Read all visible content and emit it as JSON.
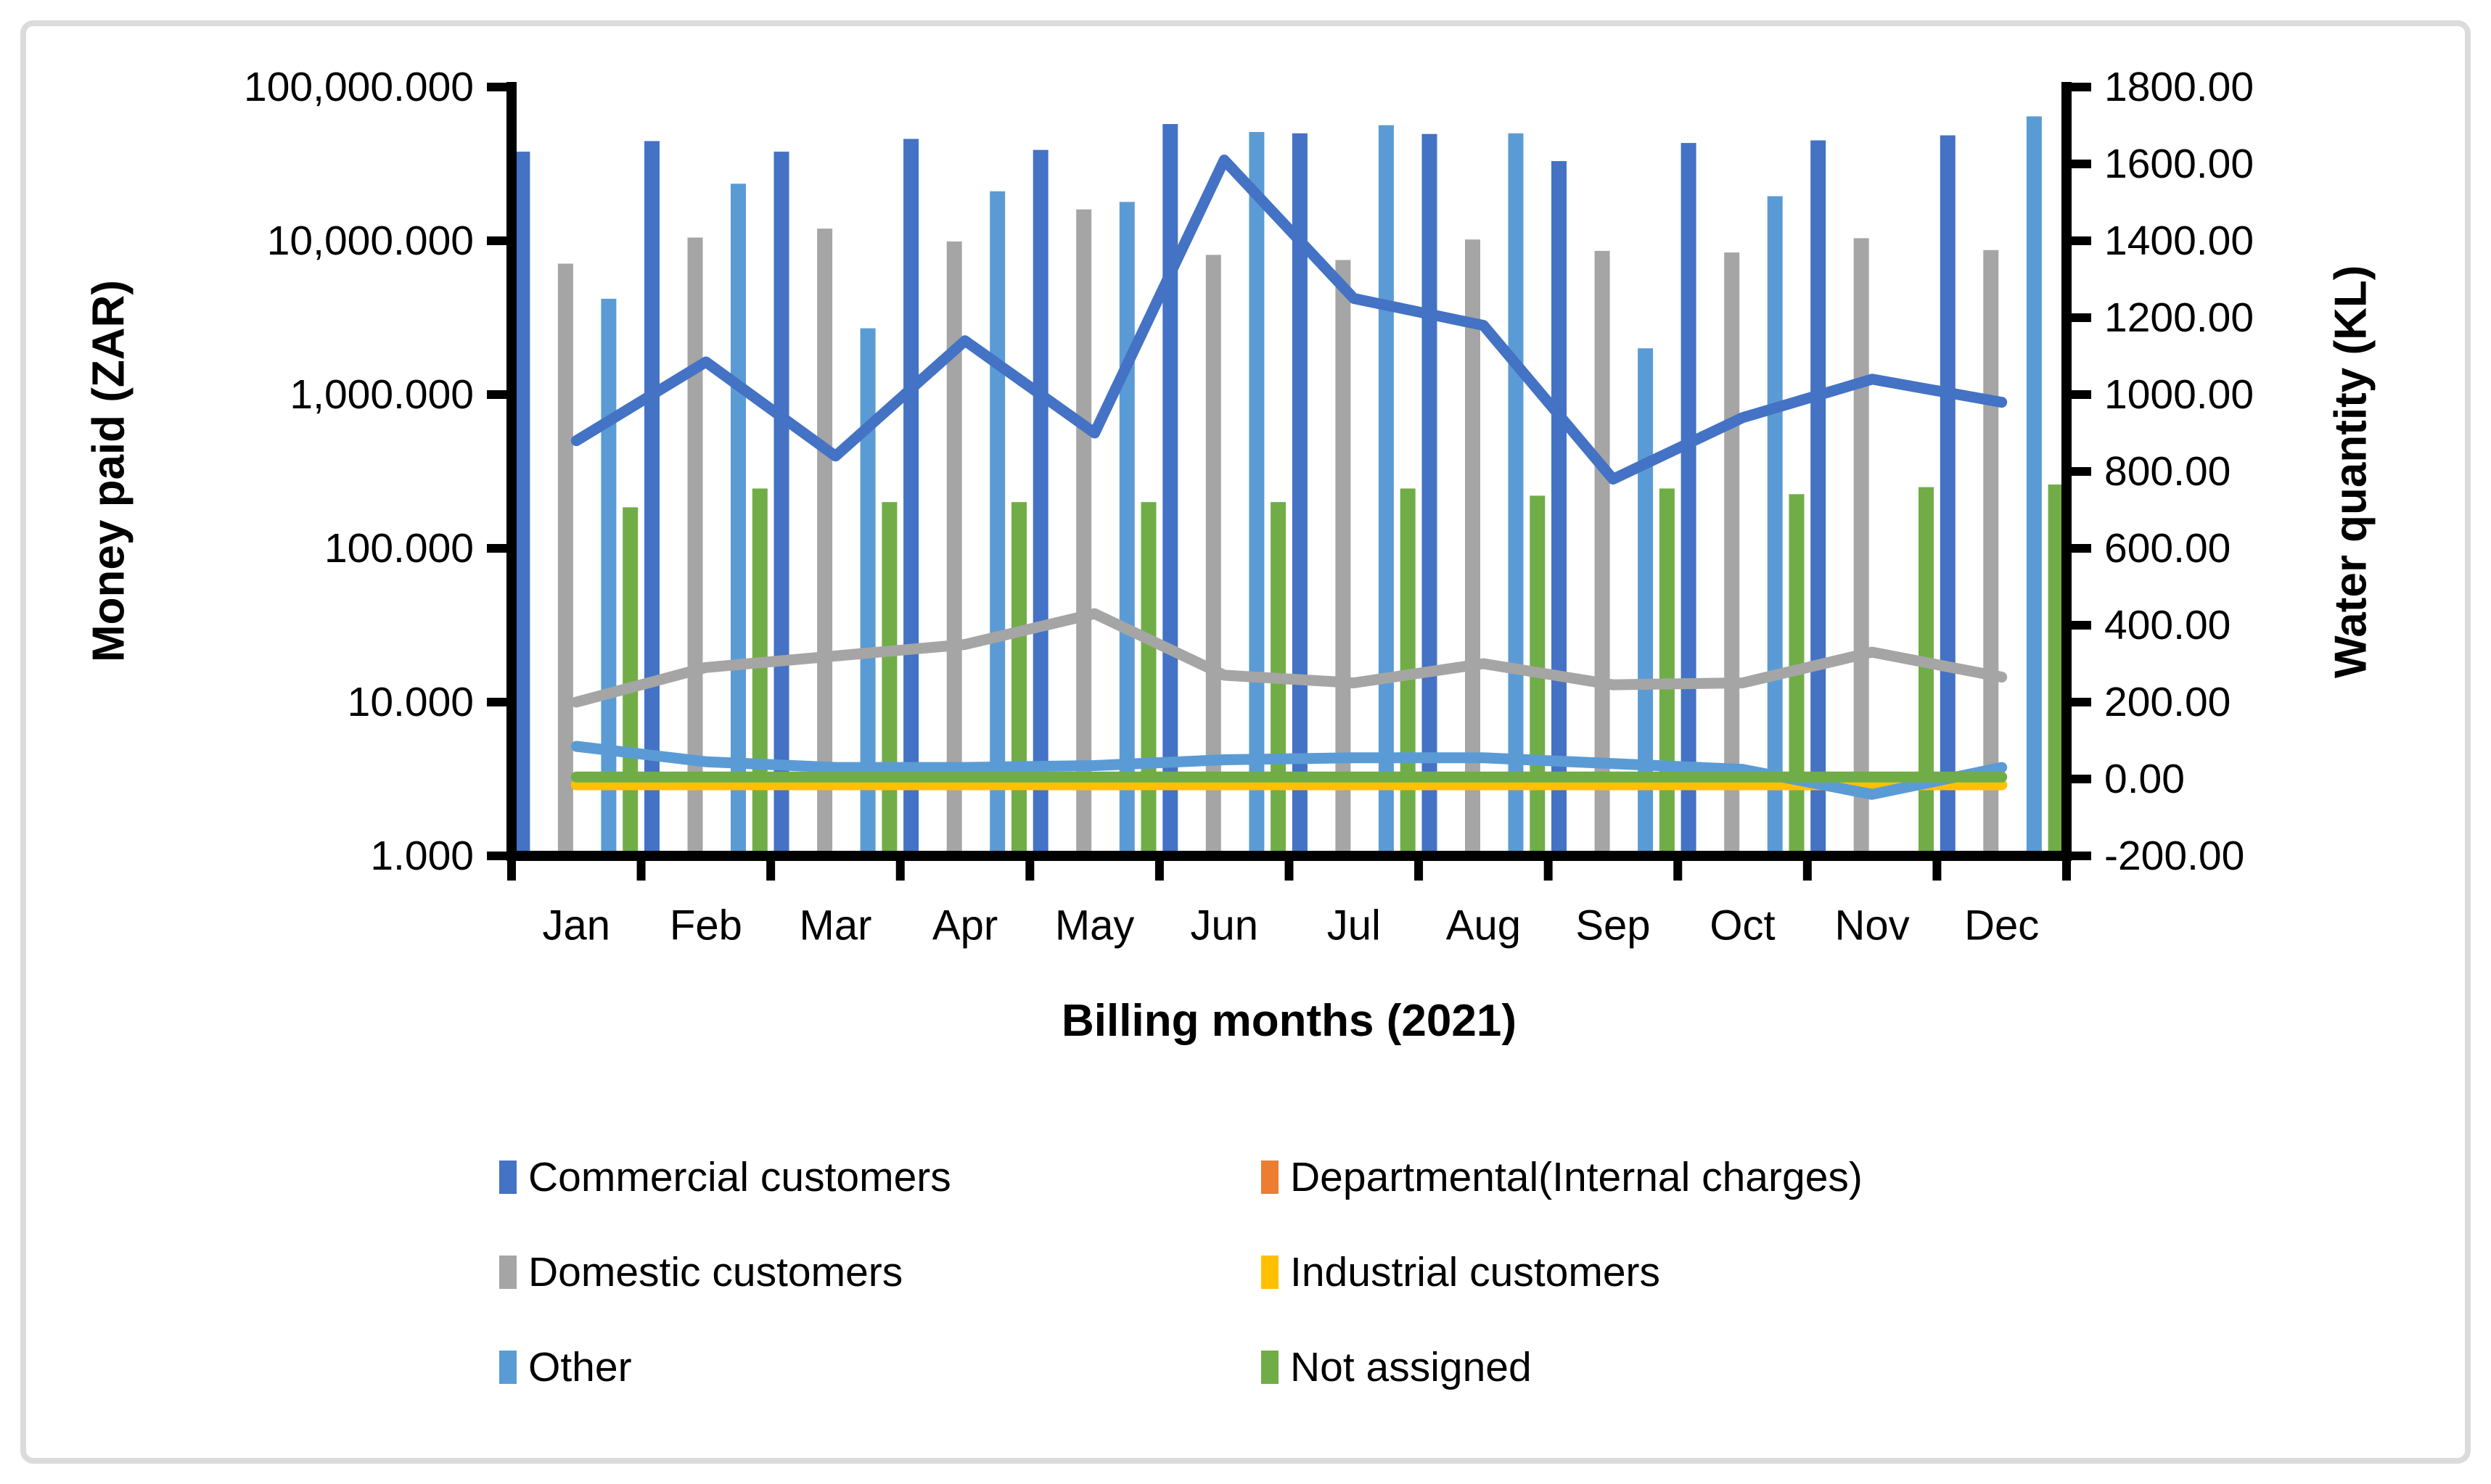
{
  "chart_data": {
    "type": "combo-bar-line",
    "title": "",
    "xlabel": "Billing months (2021)",
    "ylabel_left": "Money paid (ZAR)",
    "ylabel_right": "Water quantity (KL)",
    "categories": [
      "Jan",
      "Feb",
      "Mar",
      "Apr",
      "May",
      "Jun",
      "Jul",
      "Aug",
      "Sep",
      "Oct",
      "Nov",
      "Dec"
    ],
    "left_axis": {
      "scale": "log",
      "min": 1,
      "max": 100000,
      "tick_labels": [
        "100,000.000",
        "10,000.000",
        "1,000.000",
        "100.000",
        "10.000",
        "1.000"
      ]
    },
    "right_axis": {
      "min": -200,
      "max": 1800,
      "step": 200,
      "tick_labels": [
        "1800.00",
        "1600.00",
        "1400.00",
        "1200.00",
        "1000.00",
        "800.00",
        "600.00",
        "400.00",
        "200.00",
        "0.00",
        "-200.00"
      ]
    },
    "legend_position": "bottom",
    "grid": false,
    "bars_axis": "left (Money paid, ZAR, log scale)",
    "lines_axis": "right (Water quantity, KL, linear scale)",
    "series": [
      {
        "id": "commercial",
        "name": "Commercial customers",
        "color": "#4472C4",
        "bar_values": [
          38000,
          44500,
          38000,
          46000,
          39000,
          57500,
          50000,
          49500,
          33000,
          43300,
          45000,
          48500
        ],
        "line_values": [
          880,
          1085,
          840,
          1140,
          900,
          1610,
          1250,
          1180,
          780,
          940,
          1040,
          980
        ]
      },
      {
        "id": "departmental",
        "name": "Departmental(Internal charges)",
        "color": "#ED7D31",
        "bar_values": [
          0,
          0,
          0,
          0,
          0,
          0,
          0,
          0,
          0,
          0,
          0,
          0
        ],
        "line_values": [
          -15,
          -15,
          -15,
          -15,
          -15,
          -15,
          -15,
          -15,
          -15,
          -15,
          -15,
          -15
        ]
      },
      {
        "id": "domestic",
        "name": "Domestic customers",
        "color": "#A5A5A5",
        "bar_values": [
          7100,
          10500,
          12000,
          9900,
          16000,
          8100,
          7500,
          10200,
          8600,
          8400,
          10400,
          8700
        ],
        "line_values": [
          200,
          290,
          320,
          350,
          430,
          270,
          250,
          300,
          245,
          250,
          330,
          265
        ]
      },
      {
        "id": "industrial",
        "name": "Industrial customers",
        "color": "#FFC000",
        "bar_values": [
          0,
          0,
          0,
          0,
          0,
          0,
          0,
          0,
          0,
          0,
          0,
          0
        ],
        "line_values": [
          -15,
          -15,
          -15,
          -15,
          -15,
          -15,
          -15,
          -15,
          -15,
          -15,
          -15,
          -15
        ]
      },
      {
        "id": "other",
        "name": "Other",
        "color": "#5B9BD5",
        "bar_values": [
          4200,
          23500,
          2700,
          21000,
          17900,
          51000,
          56500,
          50000,
          2000,
          19500,
          0,
          64500
        ],
        "line_values": [
          85,
          45,
          30,
          30,
          35,
          50,
          55,
          55,
          40,
          25,
          -40,
          30
        ]
      },
      {
        "id": "not-assigned",
        "name": "Not assigned",
        "color": "#70AD47",
        "bar_values": [
          185,
          245,
          200,
          200,
          200,
          200,
          245,
          220,
          245,
          225,
          250,
          260
        ],
        "line_values": [
          5,
          5,
          5,
          5,
          5,
          5,
          5,
          5,
          5,
          5,
          5,
          5
        ]
      }
    ]
  }
}
